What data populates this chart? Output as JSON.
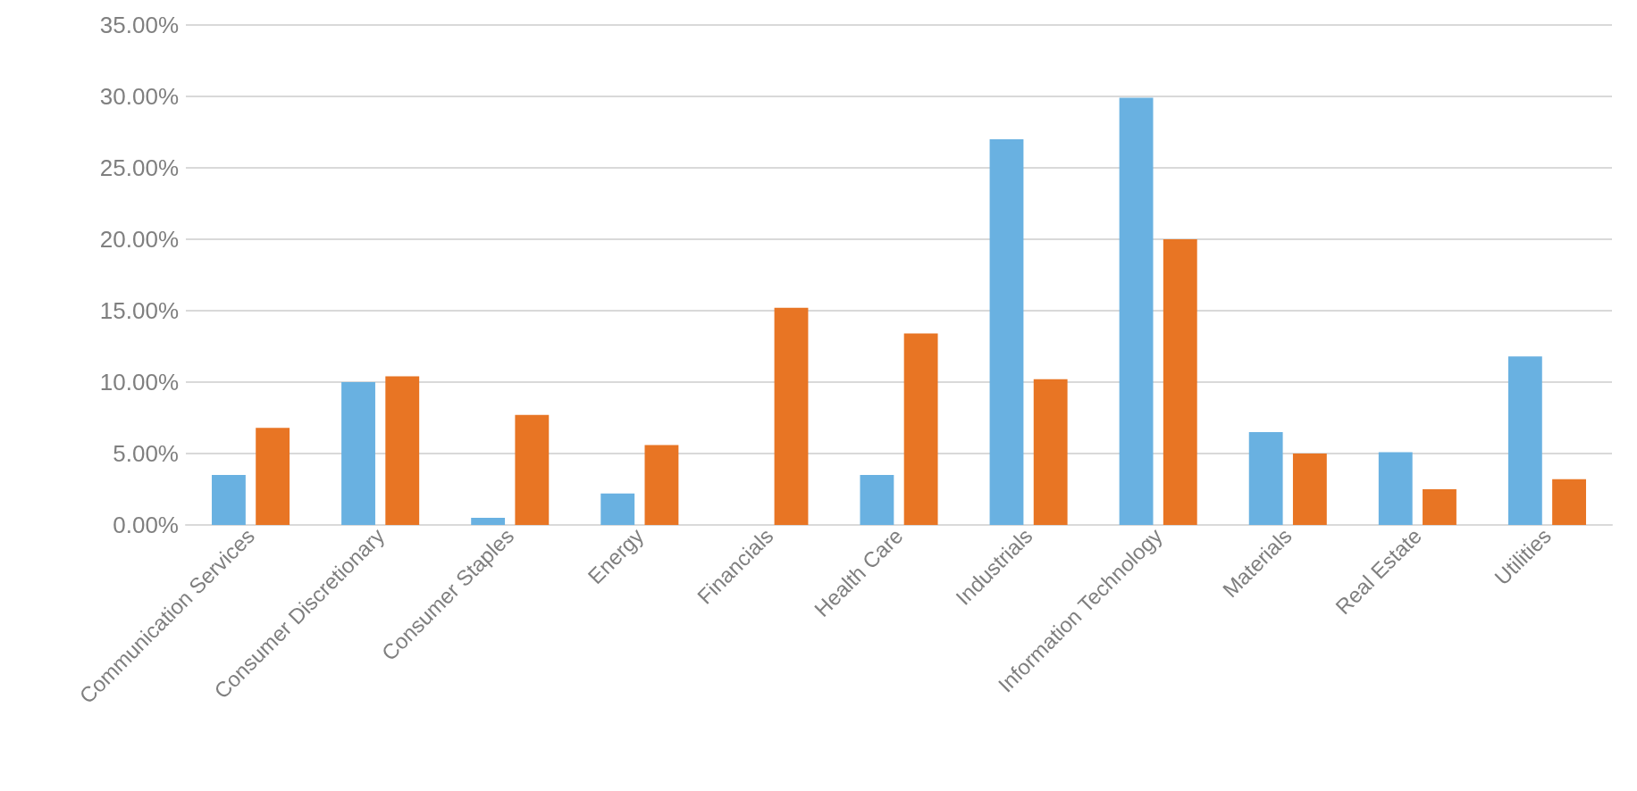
{
  "chart_data": {
    "type": "bar",
    "categories": [
      "Communication Services",
      "Consumer Discretionary",
      "Consumer Staples",
      "Energy",
      "Financials",
      "Health Care",
      "Industrials",
      "Information Technology",
      "Materials",
      "Real Estate",
      "Utilities"
    ],
    "series": [
      {
        "color": "#69b1e1",
        "values": [
          3.5,
          10.0,
          0.5,
          2.2,
          0,
          3.5,
          27.0,
          29.9,
          6.5,
          5.1,
          11.8
        ]
      },
      {
        "color": "#e87524",
        "values": [
          6.8,
          10.4,
          7.7,
          5.6,
          15.2,
          13.4,
          10.2,
          20.0,
          5.0,
          2.5,
          3.2
        ]
      }
    ],
    "ylim": [
      0,
      35
    ],
    "yticks": [
      {
        "value": 0,
        "label": "0.00%"
      },
      {
        "value": 5,
        "label": "5.00%"
      },
      {
        "value": 10,
        "label": "10.00%"
      },
      {
        "value": 15,
        "label": "15.00%"
      },
      {
        "value": 20,
        "label": "20.00%"
      },
      {
        "value": 25,
        "label": "25.00%"
      },
      {
        "value": 30,
        "label": "30.00%"
      },
      {
        "value": 35,
        "label": "35.00%"
      }
    ],
    "grid": "y"
  }
}
